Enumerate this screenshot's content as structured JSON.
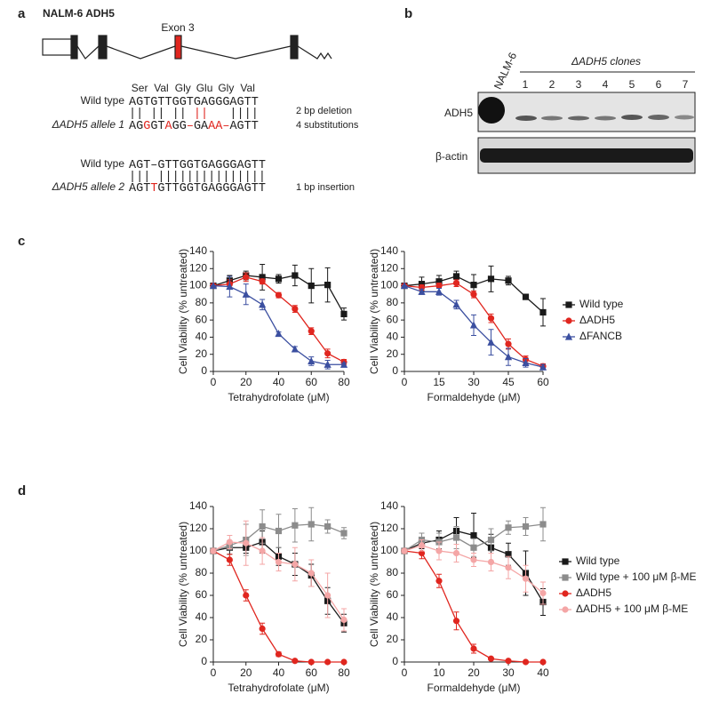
{
  "panel_labels": [
    "a",
    "b",
    "c",
    "d"
  ],
  "gene_diagram": {
    "title": "NALM-6 ADH5",
    "exon_label": "Exon 3"
  },
  "note_color": "#e0261f",
  "alignments": [
    {
      "amino_acids": [
        "Ser",
        "Val",
        "Gly",
        "Glu",
        "Gly",
        "Val"
      ],
      "rows": [
        {
          "label": "Wild type",
          "sequence": [
            {
              "text": "AGTGTTGGTGAGGGAGTT",
              "color": "#222222"
            }
          ]
        },
        {
          "label": "ΔADH5 allele 1",
          "sequence": [
            {
              "text": "AG",
              "color": "#222222"
            },
            {
              "text": "G",
              "color": "#e0261f"
            },
            {
              "text": "GT",
              "color": "#222222"
            },
            {
              "text": "A",
              "color": "#e0261f"
            },
            {
              "text": "GG",
              "color": "#222222"
            },
            {
              "text": "–",
              "color": "#e0261f"
            },
            {
              "text": "GA",
              "color": "#222222"
            },
            {
              "text": "AA",
              "color": "#e0261f"
            },
            {
              "text": "–",
              "color": "#e0261f"
            },
            {
              "text": "AGTT",
              "color": "#222222"
            }
          ]
        }
      ],
      "match": [
        {
          "text": "|| || || ",
          "color": "#222222"
        },
        {
          "text": "||",
          "color": "#e0261f"
        },
        {
          "text": "   ||||",
          "color": "#222222"
        }
      ],
      "notes": [
        "2 bp deletion",
        "4 substitutions"
      ]
    },
    {
      "rows": [
        {
          "label": "Wild type",
          "sequence": [
            {
              "text": "AGT–GTTGGTGAGGGAGTT",
              "color": "#222222"
            }
          ]
        },
        {
          "label": "ΔADH5 allele 2",
          "sequence": [
            {
              "text": "AGT",
              "color": "#222222"
            },
            {
              "text": "T",
              "color": "#e0261f"
            },
            {
              "text": "GTTGGTGAGGGAGTT",
              "color": "#222222"
            }
          ]
        }
      ],
      "match": [
        {
          "text": "||| |||||||||||||||",
          "color": "#222222"
        }
      ],
      "notes": [
        "1 bp insertion"
      ]
    }
  ],
  "blot": {
    "lanes": [
      "NALM-6",
      "1",
      "2",
      "3",
      "4",
      "5",
      "6",
      "7"
    ],
    "group_label": "ΔADH5 clones",
    "rows": [
      "ADH5",
      "β-actin"
    ]
  },
  "chart_data": [
    {
      "type": "line",
      "xlabel": "Tetrahydrofolate (μM)",
      "ylabel": "Cell Viability (% untreated)",
      "x": [
        0,
        10,
        20,
        30,
        40,
        50,
        60,
        70,
        80
      ],
      "xlim": [
        0,
        80
      ],
      "xticks": [
        0,
        20,
        40,
        60,
        80
      ],
      "ylim": [
        0,
        140
      ],
      "yticks": [
        0,
        20,
        40,
        60,
        80,
        100,
        120,
        140
      ],
      "legend": false,
      "series": [
        {
          "name": "Wild type",
          "color": "#1a1a1a",
          "marker": "square",
          "values": [
            100,
            106,
            112,
            110,
            108,
            112,
            100,
            101,
            67
          ],
          "errors": [
            0,
            6,
            5,
            15,
            5,
            12,
            20,
            20,
            7
          ]
        },
        {
          "name": "ΔADH5",
          "color": "#e0261f",
          "marker": "circle",
          "values": [
            100,
            102,
            110,
            105,
            89,
            73,
            47,
            21,
            11
          ],
          "errors": [
            0,
            5,
            5,
            3,
            3,
            4,
            4,
            5,
            3
          ]
        },
        {
          "name": "ΔFANCB",
          "color": "#3b4fa0",
          "marker": "triangle",
          "values": [
            100,
            99,
            90,
            78,
            44,
            26,
            12,
            8,
            8
          ],
          "errors": [
            0,
            12,
            12,
            6,
            2,
            3,
            5,
            5,
            2
          ]
        }
      ]
    },
    {
      "type": "line",
      "xlabel": "Formaldehyde (μM)",
      "ylabel": "Cell Viability (% untreated)",
      "x": [
        0,
        7.5,
        15,
        22.5,
        30,
        37.5,
        45,
        52.5,
        60
      ],
      "xlim": [
        0,
        60
      ],
      "xticks": [
        0,
        15,
        30,
        45,
        60
      ],
      "ylim": [
        0,
        140
      ],
      "yticks": [
        0,
        20,
        40,
        60,
        80,
        100,
        120,
        140
      ],
      "legend": true,
      "series": [
        {
          "name": "Wild type",
          "color": "#1a1a1a",
          "marker": "square",
          "values": [
            100,
            102,
            105,
            111,
            101,
            108,
            106,
            87,
            69
          ],
          "errors": [
            0,
            8,
            7,
            6,
            12,
            15,
            5,
            3,
            16
          ]
        },
        {
          "name": "ΔADH5",
          "color": "#e0261f",
          "marker": "circle",
          "values": [
            100,
            98,
            100,
            103,
            90,
            62,
            32,
            14,
            6
          ],
          "errors": [
            0,
            3,
            3,
            4,
            4,
            5,
            6,
            4,
            3
          ]
        },
        {
          "name": "ΔFANCB",
          "color": "#3b4fa0",
          "marker": "triangle",
          "values": [
            100,
            93,
            93,
            78,
            54,
            34,
            17,
            10,
            5
          ],
          "errors": [
            0,
            3,
            4,
            5,
            12,
            15,
            10,
            5,
            3
          ]
        }
      ]
    },
    {
      "type": "line",
      "xlabel": "Tetrahydrofolate (μM)",
      "ylabel": "Cell Viability (% untreated)",
      "x": [
        0,
        10,
        20,
        30,
        40,
        50,
        60,
        70,
        80
      ],
      "xlim": [
        0,
        80
      ],
      "xticks": [
        0,
        20,
        40,
        60,
        80
      ],
      "ylim": [
        0,
        140
      ],
      "yticks": [
        0,
        20,
        40,
        60,
        80,
        100,
        120,
        140
      ],
      "legend": false,
      "series": [
        {
          "name": "Wild type",
          "color": "#1a1a1a",
          "marker": "square",
          "values": [
            100,
            103,
            103,
            108,
            95,
            88,
            78,
            55,
            35
          ],
          "errors": [
            0,
            6,
            5,
            10,
            8,
            10,
            10,
            12,
            8
          ]
        },
        {
          "name": "Wild type + 100 μM β-ME",
          "color": "#8c8c8c",
          "marker": "square",
          "values": [
            100,
            105,
            110,
            122,
            118,
            123,
            124,
            122,
            116
          ],
          "errors": [
            0,
            4,
            14,
            15,
            15,
            15,
            15,
            6,
            5
          ]
        },
        {
          "name": "ΔADH5",
          "color": "#e0261f",
          "marker": "circle",
          "values": [
            100,
            92,
            60,
            30,
            7,
            1,
            0,
            0,
            0
          ],
          "errors": [
            0,
            5,
            5,
            5,
            2,
            1,
            0,
            0,
            0
          ]
        },
        {
          "name": "ΔADH5 + 100 μM β-ME",
          "color": "#f4a6a6",
          "marker": "circle",
          "values": [
            100,
            108,
            107,
            100,
            90,
            88,
            80,
            60,
            38
          ],
          "errors": [
            0,
            6,
            20,
            12,
            8,
            15,
            12,
            20,
            10
          ]
        }
      ]
    },
    {
      "type": "line",
      "xlabel": "Formaldehyde (μM)",
      "ylabel": "Cell Viability (% untreated)",
      "x": [
        0,
        5,
        10,
        15,
        20,
        25,
        30,
        35,
        40
      ],
      "xlim": [
        0,
        40
      ],
      "xticks": [
        0,
        10,
        20,
        30,
        40
      ],
      "ylim": [
        0,
        140
      ],
      "yticks": [
        0,
        20,
        40,
        60,
        80,
        100,
        120,
        140
      ],
      "legend": true,
      "series": [
        {
          "name": "Wild type",
          "color": "#1a1a1a",
          "marker": "square",
          "values": [
            100,
            107,
            110,
            118,
            114,
            103,
            97,
            80,
            54
          ],
          "errors": [
            0,
            5,
            8,
            12,
            20,
            12,
            10,
            20,
            12
          ]
        },
        {
          "name": "Wild type + 100 μM β-ME",
          "color": "#8c8c8c",
          "marker": "square",
          "values": [
            100,
            110,
            108,
            112,
            103,
            110,
            121,
            122,
            124
          ],
          "errors": [
            0,
            6,
            8,
            10,
            8,
            10,
            6,
            8,
            15
          ]
        },
        {
          "name": "ΔADH5",
          "color": "#e0261f",
          "marker": "circle",
          "values": [
            100,
            98,
            73,
            37,
            12,
            3,
            1,
            0,
            0
          ],
          "errors": [
            0,
            5,
            6,
            8,
            4,
            1,
            0,
            0,
            0
          ]
        },
        {
          "name": "ΔADH5 + 100 μM β-ME",
          "color": "#f4a6a6",
          "marker": "circle",
          "values": [
            100,
            105,
            100,
            98,
            92,
            90,
            85,
            75,
            62
          ],
          "errors": [
            0,
            5,
            8,
            8,
            6,
            8,
            10,
            12,
            10
          ]
        }
      ]
    }
  ]
}
